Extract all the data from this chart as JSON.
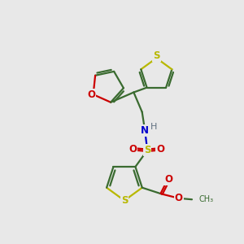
{
  "background_color": "#e8e8e8",
  "bond_color": "#3a6b30",
  "sulfur_color": "#b8b800",
  "oxygen_color": "#cc0000",
  "nitrogen_color": "#0000cc",
  "hydrogen_color": "#607080",
  "line_width": 1.6,
  "figsize": [
    3.0,
    3.0
  ],
  "dpi": 100,
  "xlim": [
    0,
    10
  ],
  "ylim": [
    0,
    10
  ]
}
